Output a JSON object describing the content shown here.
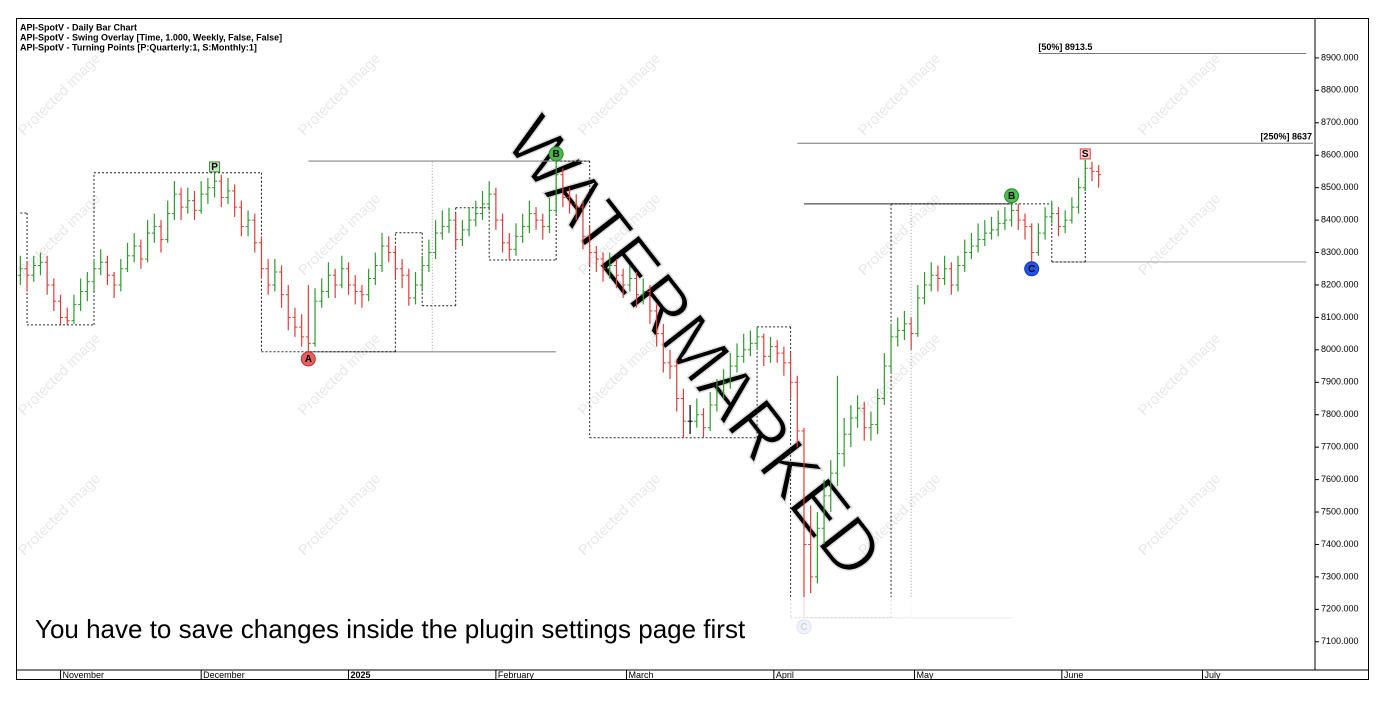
{
  "chart_data": {
    "type": "ohlc",
    "title_lines": [
      "API-SpotV - Daily Bar Chart",
      "API-SpotV - Swing Overlay [Time, 1.000, Weekly, False, False]",
      "API-SpotV - Turning Points [P:Quarterly:1, S:Monthly:1]"
    ],
    "up_color": "#2f9a2f",
    "down_color": "#e03c3c",
    "xlim": [
      -0.5,
      193.3
    ],
    "ylim": [
      7013,
      9020
    ],
    "xticks": [
      {
        "value": 6,
        "label": "November"
      },
      {
        "value": 27,
        "label": "December"
      },
      {
        "value": 49,
        "label": "2025",
        "bold": true
      },
      {
        "value": 71,
        "label": "February"
      },
      {
        "value": 90.5,
        "label": "March"
      },
      {
        "value": 112.5,
        "label": "April"
      },
      {
        "value": 133.5,
        "label": "May"
      },
      {
        "value": 155.5,
        "label": "June"
      },
      {
        "value": 176.5,
        "label": "July"
      }
    ],
    "yticks": [
      {
        "value": 7100,
        "label": "7100.000"
      },
      {
        "value": 7200,
        "label": "7200.000"
      },
      {
        "value": 7300,
        "label": "7300.000"
      },
      {
        "value": 7400,
        "label": "7400.000"
      },
      {
        "value": 7500,
        "label": "7500.000"
      },
      {
        "value": 7600,
        "label": "7600.000"
      },
      {
        "value": 7700,
        "label": "7700.000"
      },
      {
        "value": 7800,
        "label": "7800.000"
      },
      {
        "value": 7900,
        "label": "7900.000"
      },
      {
        "value": 8000,
        "label": "8000.000"
      },
      {
        "value": 8100,
        "label": "8100.000"
      },
      {
        "value": 8200,
        "label": "8200.000"
      },
      {
        "value": 8300,
        "label": "8300.000"
      },
      {
        "value": 8400,
        "label": "8400.000"
      },
      {
        "value": 8500,
        "label": "8500.000"
      },
      {
        "value": 8600,
        "label": "8600.000"
      },
      {
        "value": 8700,
        "label": "8700.000"
      },
      {
        "value": 8800,
        "label": "8800.000"
      },
      {
        "value": 8900,
        "label": "8900.000"
      }
    ],
    "bars": [
      [
        8230,
        8290,
        8200,
        8250
      ],
      [
        8250,
        8270,
        8180,
        8230
      ],
      [
        8230,
        8290,
        8210,
        8260
      ],
      [
        8260,
        8300,
        8230,
        8270
      ],
      [
        8270,
        8290,
        8170,
        8200
      ],
      [
        8200,
        8220,
        8120,
        8150
      ],
      [
        8150,
        8170,
        8077,
        8100
      ],
      [
        8100,
        8130,
        8077,
        8090
      ],
      [
        8090,
        8170,
        8080,
        8140
      ],
      [
        8140,
        8220,
        8120,
        8180
      ],
      [
        8180,
        8240,
        8150,
        8210
      ],
      [
        8210,
        8280,
        8180,
        8250
      ],
      [
        8250,
        8310,
        8230,
        8270
      ],
      [
        8270,
        8290,
        8200,
        8230
      ],
      [
        8230,
        8240,
        8160,
        8200
      ],
      [
        8200,
        8280,
        8180,
        8250
      ],
      [
        8250,
        8330,
        8240,
        8290
      ],
      [
        8290,
        8360,
        8270,
        8320
      ],
      [
        8320,
        8340,
        8250,
        8280
      ],
      [
        8280,
        8400,
        8270,
        8360
      ],
      [
        8360,
        8420,
        8330,
        8380
      ],
      [
        8380,
        8400,
        8300,
        8340
      ],
      [
        8340,
        8460,
        8330,
        8420
      ],
      [
        8420,
        8520,
        8400,
        8480
      ],
      [
        8480,
        8500,
        8400,
        8440
      ],
      [
        8440,
        8500,
        8420,
        8460
      ],
      [
        8460,
        8490,
        8400,
        8430
      ],
      [
        8430,
        8520,
        8420,
        8480
      ],
      [
        8480,
        8530,
        8450,
        8500
      ],
      [
        8500,
        8546,
        8470,
        8520
      ],
      [
        8520,
        8540,
        8440,
        8470
      ],
      [
        8470,
        8530,
        8450,
        8490
      ],
      [
        8490,
        8510,
        8410,
        8440
      ],
      [
        8440,
        8460,
        8350,
        8380
      ],
      [
        8380,
        8430,
        8350,
        8400
      ],
      [
        8400,
        8420,
        8300,
        8330
      ],
      [
        8330,
        8350,
        8220,
        8250
      ],
      [
        8250,
        8280,
        8170,
        8200
      ],
      [
        8200,
        8280,
        8180,
        8240
      ],
      [
        8240,
        8260,
        8130,
        8170
      ],
      [
        8170,
        8200,
        8060,
        8100
      ],
      [
        8100,
        8130,
        8040,
        8070
      ],
      [
        8070,
        8110,
        8010,
        8040
      ],
      [
        8040,
        8200,
        7994,
        8020
      ],
      [
        8020,
        8190,
        8010,
        8150
      ],
      [
        8150,
        8220,
        8130,
        8180
      ],
      [
        8180,
        8270,
        8160,
        8230
      ],
      [
        8230,
        8250,
        8160,
        8200
      ],
      [
        8200,
        8290,
        8190,
        8250
      ],
      [
        8250,
        8270,
        8170,
        8200
      ],
      [
        8200,
        8230,
        8140,
        8180
      ],
      [
        8180,
        8200,
        8130,
        8170
      ],
      [
        8170,
        8250,
        8150,
        8220
      ],
      [
        8220,
        8300,
        8200,
        8260
      ],
      [
        8260,
        8361,
        8240,
        8320
      ],
      [
        8320,
        8350,
        8270,
        8300
      ],
      [
        8300,
        8320,
        8220,
        8250
      ],
      [
        8250,
        8280,
        8190,
        8230
      ],
      [
        8230,
        8250,
        8136,
        8160
      ],
      [
        8160,
        8240,
        8140,
        8200
      ],
      [
        8200,
        8290,
        8180,
        8260
      ],
      [
        8260,
        8340,
        8240,
        8300
      ],
      [
        8300,
        8400,
        8280,
        8360
      ],
      [
        8360,
        8430,
        8340,
        8380
      ],
      [
        8380,
        8438,
        8360,
        8400
      ],
      [
        8400,
        8420,
        8310,
        8340
      ],
      [
        8340,
        8400,
        8320,
        8370
      ],
      [
        8370,
        8440,
        8350,
        8400
      ],
      [
        8400,
        8460,
        8380,
        8420
      ],
      [
        8420,
        8490,
        8400,
        8450
      ],
      [
        8450,
        8520,
        8430,
        8480
      ],
      [
        8480,
        8500,
        8370,
        8400
      ],
      [
        8400,
        8420,
        8300,
        8330
      ],
      [
        8330,
        8360,
        8277,
        8310
      ],
      [
        8310,
        8390,
        8290,
        8350
      ],
      [
        8350,
        8420,
        8330,
        8380
      ],
      [
        8380,
        8460,
        8360,
        8420
      ],
      [
        8420,
        8440,
        8370,
        8400
      ],
      [
        8400,
        8420,
        8340,
        8380
      ],
      [
        8380,
        8470,
        8360,
        8430
      ],
      [
        8430,
        8582,
        8420,
        8540
      ],
      [
        8540,
        8560,
        8440,
        8470
      ],
      [
        8470,
        8500,
        8420,
        8450
      ],
      [
        8450,
        8480,
        8400,
        8440
      ],
      [
        8440,
        8460,
        8310,
        8350
      ],
      [
        8350,
        8380,
        8260,
        8300
      ],
      [
        8300,
        8320,
        8240,
        8280
      ],
      [
        8280,
        8300,
        8210,
        8250
      ],
      [
        8250,
        8300,
        8220,
        8260
      ],
      [
        8260,
        8280,
        8190,
        8230
      ],
      [
        8230,
        8250,
        8160,
        8200
      ],
      [
        8200,
        8260,
        8180,
        8220
      ],
      [
        8220,
        8240,
        8130,
        8170
      ],
      [
        8170,
        8220,
        8140,
        8180
      ],
      [
        8180,
        8200,
        8080,
        8120
      ],
      [
        8120,
        8140,
        8010,
        8050
      ],
      [
        8050,
        8080,
        7930,
        7960
      ],
      [
        7960,
        8000,
        7910,
        7950
      ],
      [
        7950,
        7970,
        7810,
        7850
      ],
      [
        7850,
        7880,
        7729,
        7780
      ],
      [
        7780,
        7830,
        7740,
        7780
      ],
      [
        7780,
        7850,
        7760,
        7800
      ],
      [
        7800,
        7820,
        7730,
        7760
      ],
      [
        7760,
        7870,
        7750,
        7830
      ],
      [
        7830,
        7910,
        7810,
        7870
      ],
      [
        7870,
        7940,
        7850,
        7900
      ],
      [
        7900,
        7990,
        7880,
        7950
      ],
      [
        7950,
        8020,
        7930,
        7980
      ],
      [
        7980,
        8050,
        7960,
        8000
      ],
      [
        8000,
        8060,
        7980,
        8020
      ],
      [
        8020,
        8071,
        8000,
        8040
      ],
      [
        8040,
        8050,
        7950,
        7980
      ],
      [
        7980,
        8040,
        7960,
        8010
      ],
      [
        8010,
        8030,
        7960,
        7990
      ],
      [
        7990,
        8010,
        7920,
        7960
      ],
      [
        7960,
        7990,
        7850,
        7900
      ],
      [
        7900,
        7920,
        7700,
        7750
      ],
      [
        7750,
        7760,
        7174,
        7400
      ],
      [
        7400,
        7520,
        7250,
        7300
      ],
      [
        7300,
        7500,
        7280,
        7450
      ],
      [
        7450,
        7600,
        7400,
        7550
      ],
      [
        7550,
        7660,
        7500,
        7620
      ],
      [
        7620,
        7920,
        7580,
        7680
      ],
      [
        7680,
        7790,
        7640,
        7740
      ],
      [
        7740,
        7830,
        7700,
        7790
      ],
      [
        7790,
        7860,
        7760,
        7820
      ],
      [
        7820,
        7840,
        7720,
        7760
      ],
      [
        7760,
        7810,
        7720,
        7770
      ],
      [
        7770,
        7880,
        7740,
        7850
      ],
      [
        7850,
        7990,
        7830,
        7950
      ],
      [
        7950,
        8080,
        7930,
        8040
      ],
      [
        8040,
        8100,
        8010,
        8060
      ],
      [
        8060,
        8120,
        8030,
        8080
      ],
      [
        8080,
        8100,
        8000,
        8050
      ],
      [
        8050,
        8200,
        8040,
        8160
      ],
      [
        8160,
        8240,
        8140,
        8200
      ],
      [
        8200,
        8270,
        8180,
        8230
      ],
      [
        8230,
        8260,
        8180,
        8220
      ],
      [
        8220,
        8290,
        8200,
        8250
      ],
      [
        8250,
        8270,
        8170,
        8200
      ],
      [
        8200,
        8290,
        8180,
        8260
      ],
      [
        8260,
        8340,
        8240,
        8300
      ],
      [
        8300,
        8360,
        8280,
        8320
      ],
      [
        8320,
        8390,
        8300,
        8340
      ],
      [
        8340,
        8400,
        8320,
        8360
      ],
      [
        8360,
        8410,
        8340,
        8370
      ],
      [
        8370,
        8430,
        8350,
        8390
      ],
      [
        8390,
        8440,
        8370,
        8400
      ],
      [
        8400,
        8475,
        8380,
        8430
      ],
      [
        8430,
        8450,
        8370,
        8400
      ],
      [
        8400,
        8420,
        8340,
        8380
      ],
      [
        8380,
        8390,
        8271,
        8300
      ],
      [
        8300,
        8390,
        8290,
        8360
      ],
      [
        8360,
        8440,
        8340,
        8410
      ],
      [
        8410,
        8460,
        8390,
        8420
      ],
      [
        8420,
        8440,
        8350,
        8380
      ],
      [
        8380,
        8430,
        8360,
        8400
      ],
      [
        8400,
        8470,
        8390,
        8440
      ],
      [
        8440,
        8530,
        8420,
        8500
      ],
      [
        8500,
        8586,
        8490,
        8560
      ],
      [
        8560,
        8580,
        8520,
        8550
      ],
      [
        8550,
        8570,
        8500,
        8540
      ]
    ],
    "swing_line": {
      "color": "#222222",
      "points": [
        [
          0,
          8422
        ],
        [
          1,
          8077
        ],
        [
          11,
          8546
        ],
        [
          36,
          7994
        ],
        [
          56,
          8361
        ],
        [
          60,
          8136
        ],
        [
          65,
          8438
        ],
        [
          70,
          8277
        ],
        [
          80,
          8582
        ],
        [
          85,
          7729
        ],
        [
          110,
          8071
        ],
        [
          115,
          7174
        ],
        [
          130,
          8450
        ],
        [
          154,
          8271
        ],
        [
          159,
          8586
        ]
      ]
    },
    "hlines": [
      {
        "value": 8582,
        "start": 43,
        "end": 85,
        "color": "#888888"
      },
      {
        "value": 7994,
        "start": 43,
        "end": 80,
        "color": "#888888"
      },
      {
        "value": 8450,
        "start": 117,
        "end": 148,
        "color": "#555555"
      },
      {
        "value": 8271,
        "start": 154,
        "end": 192,
        "color": "#aaaaaa"
      },
      {
        "value": 7174,
        "start": 117,
        "end": 148,
        "color": "#aaaaaa"
      }
    ],
    "vlines": [
      {
        "bar": 61.5,
        "from": 7994,
        "to": 8582
      },
      {
        "bar": 133,
        "from": 7174,
        "to": 8450
      }
    ],
    "levels": [
      {
        "label": "[50%] 8913.5",
        "value": 8913.5,
        "start": 152,
        "end": 192,
        "side": "left"
      },
      {
        "label": "[250%] 8637",
        "value": 8637,
        "start": 116,
        "end": 193,
        "side": "right"
      }
    ],
    "markers": [
      {
        "label": "P",
        "bar": 29,
        "value": 8564,
        "shape": "square",
        "fill": "#c8e6c0",
        "stroke": "#3c8c3c",
        "text_color": "#2a7a2a"
      },
      {
        "label": "A",
        "bar": 43,
        "value": 7972,
        "shape": "circle",
        "fill": "#e86060",
        "stroke": "#c03030",
        "text_color": "#7a1010"
      },
      {
        "label": "B",
        "bar": 80,
        "value": 8604,
        "shape": "circle",
        "fill": "#4cb84c",
        "stroke": "#2a8a2a",
        "text_color": "#c04000"
      },
      {
        "label": "C",
        "bar": 117,
        "value": 7146,
        "shape": "circle",
        "fill": "#aabbff",
        "stroke": "#3355dd",
        "text_color": "#2244cc"
      },
      {
        "label": "B",
        "bar": 148,
        "value": 8475,
        "shape": "circle",
        "fill": "#4cc04c",
        "stroke": "#2a8a2a",
        "text_color": "#0a3a0a"
      },
      {
        "label": "C",
        "bar": 151,
        "value": 8250,
        "shape": "circle",
        "fill": "#2255ee",
        "stroke": "#1133aa",
        "text_color": "#ffffff"
      },
      {
        "label": "S",
        "bar": 159,
        "value": 8604,
        "shape": "square",
        "fill": "#ffd0d0",
        "stroke": "#e04040",
        "text_color": "#d03030"
      }
    ],
    "notice": "You have to save changes inside the plugin settings page first",
    "watermark": "Protected image",
    "watermark_big": "WATERMARKED"
  }
}
